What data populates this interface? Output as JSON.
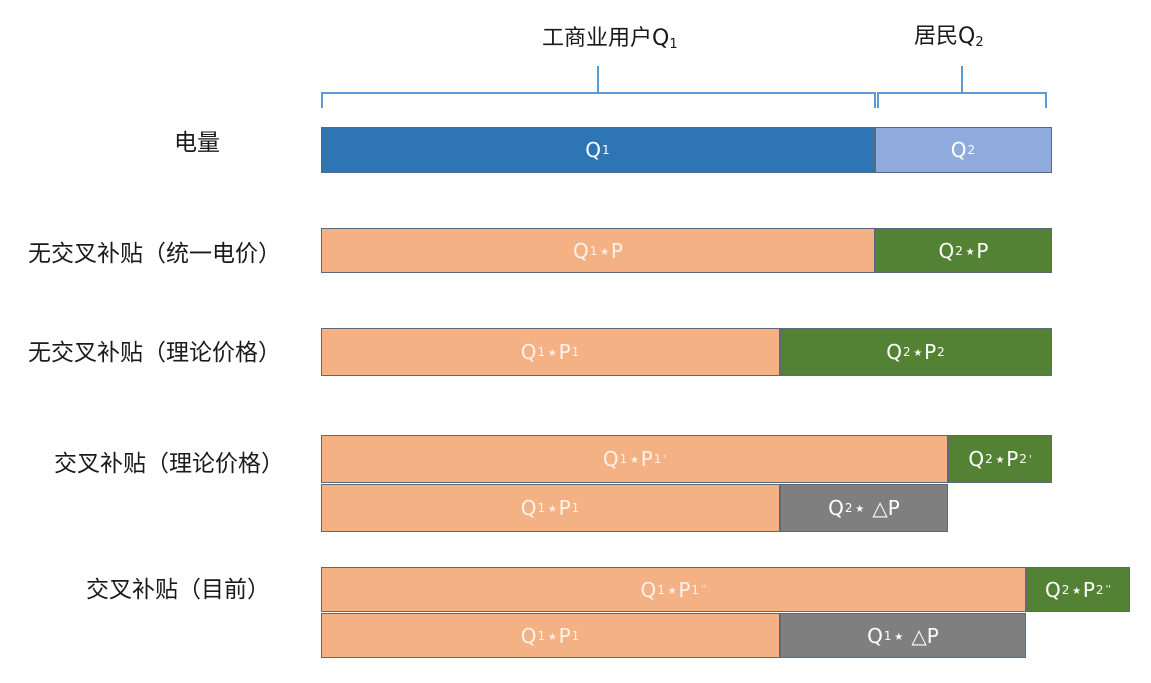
{
  "braces": {
    "q1": {
      "base": "工商业用户Q",
      "sub": "1"
    },
    "q2": {
      "base": "居民Q",
      "sub": "2"
    }
  },
  "rows": {
    "r1": "电量",
    "r2": "无交叉补贴（统一电价）",
    "r3": "无交叉补贴（理论价格）",
    "r4": "交叉补贴（理论价格）",
    "r5": "交叉补贴（目前）"
  },
  "segments": {
    "s_q1": {
      "a": "Q",
      "as": "1"
    },
    "s_q2": {
      "a": "Q",
      "as": "2"
    },
    "s2a": {
      "a": "Q",
      "as": "1",
      "b": "⋆P"
    },
    "s2b": {
      "a": "Q",
      "as": "2",
      "b": "⋆P"
    },
    "s3a": {
      "a": "Q",
      "as": "1",
      "b": "⋆P",
      "bs": "1"
    },
    "s3b": {
      "a": "Q",
      "as": "2",
      "b": "⋆P",
      "bs": "2"
    },
    "s4a": {
      "a": "Q",
      "as": "1",
      "b": "⋆P",
      "bs": "1",
      "sup": "'"
    },
    "s4b": {
      "a": "Q",
      "as": "2",
      "b": "⋆P",
      "bs": "2",
      "sup": "'"
    },
    "s4c": {
      "a": "Q",
      "as": "1",
      "b": "⋆P",
      "bs": "1"
    },
    "s4d": {
      "a": "Q",
      "as": "2",
      "b": " ⋆ △P"
    },
    "s5a": {
      "a": "Q",
      "as": "1",
      "b": "⋆P",
      "bs": "1",
      "sup": "''"
    },
    "s5b": {
      "a": "Q",
      "as": "2",
      "b": "⋆P",
      "bs": "2",
      "sup": "''"
    },
    "s5c": {
      "a": "Q",
      "as": "1",
      "b": "⋆P",
      "bs": "1"
    },
    "s5d": {
      "a": "Q",
      "as": "1",
      "b": " ⋆ △P"
    }
  },
  "colors": {
    "electricity_q1": "#2e75b6",
    "electricity_q2": "#8faadc",
    "commercial_revenue": "#f4b183",
    "residential_revenue": "#548235",
    "subsidy": "#7f7f7f",
    "brace": "#5b9bd5"
  }
}
